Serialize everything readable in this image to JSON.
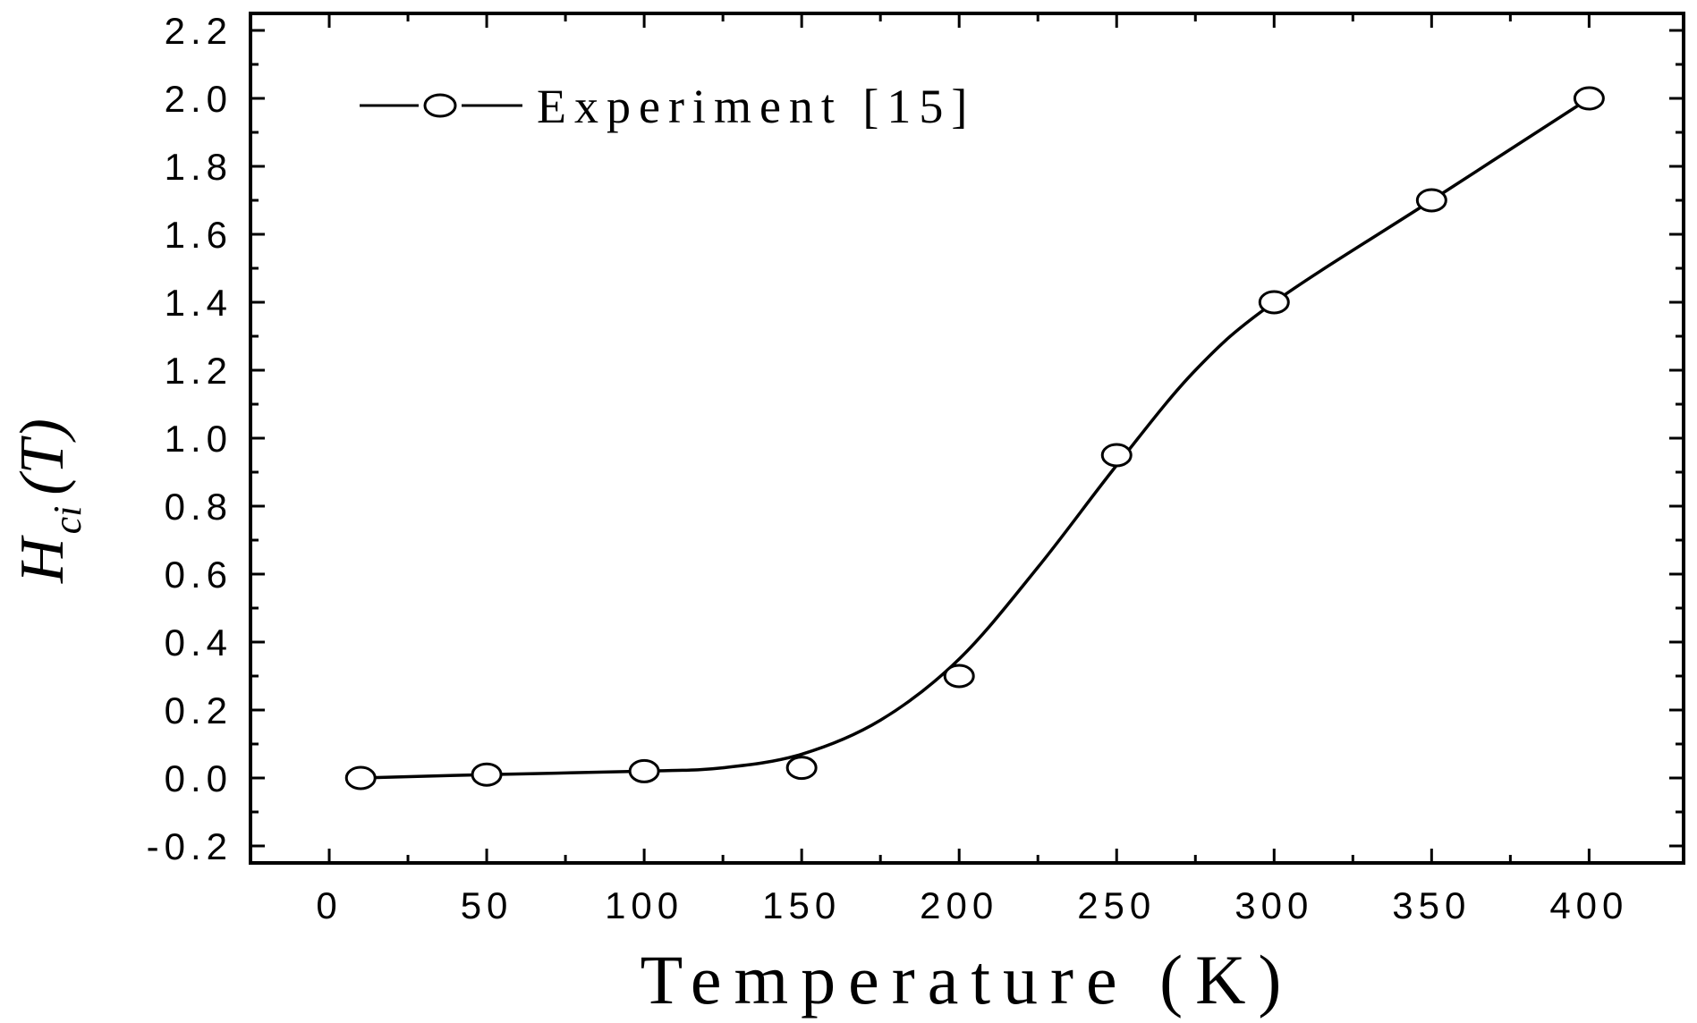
{
  "chart_data": {
    "type": "line",
    "title": "",
    "xlabel": "Temperature (K)",
    "ylabel_main": "H",
    "ylabel_sub": "ci",
    "ylabel_unit": "(T)",
    "xlim": [
      -25,
      430
    ],
    "ylim": [
      -0.25,
      2.25
    ],
    "x_ticks": [
      0,
      50,
      100,
      150,
      200,
      250,
      300,
      350,
      400
    ],
    "x_tick_labels": [
      "0",
      "50",
      "100",
      "150",
      "200",
      "250",
      "300",
      "350",
      "400"
    ],
    "y_ticks": [
      -0.2,
      0.0,
      0.2,
      0.4,
      0.6,
      0.8,
      1.0,
      1.2,
      1.4,
      1.6,
      1.8,
      2.0,
      2.2
    ],
    "y_tick_labels": [
      "-0.2",
      "0.0",
      "0.2",
      "0.4",
      "0.6",
      "0.8",
      "1.0",
      "1.2",
      "1.4",
      "1.6",
      "1.8",
      "2.0",
      "2.2"
    ],
    "grid": false,
    "legend_position": "top-left",
    "series": [
      {
        "name": "Experiment [15]",
        "marker": "open-circle",
        "color": "#000000",
        "x": [
          10,
          50,
          100,
          150,
          200,
          250,
          300,
          350,
          400
        ],
        "y": [
          0.0,
          0.01,
          0.02,
          0.03,
          0.3,
          0.95,
          1.4,
          1.7,
          2.0
        ]
      }
    ],
    "fit_curve": {
      "x": [
        10,
        50,
        100,
        125,
        150,
        175,
        200,
        225,
        250,
        275,
        300,
        350,
        400
      ],
      "y": [
        0.0,
        0.01,
        0.02,
        0.03,
        0.07,
        0.17,
        0.35,
        0.62,
        0.92,
        1.2,
        1.4,
        1.7,
        2.0
      ]
    }
  }
}
